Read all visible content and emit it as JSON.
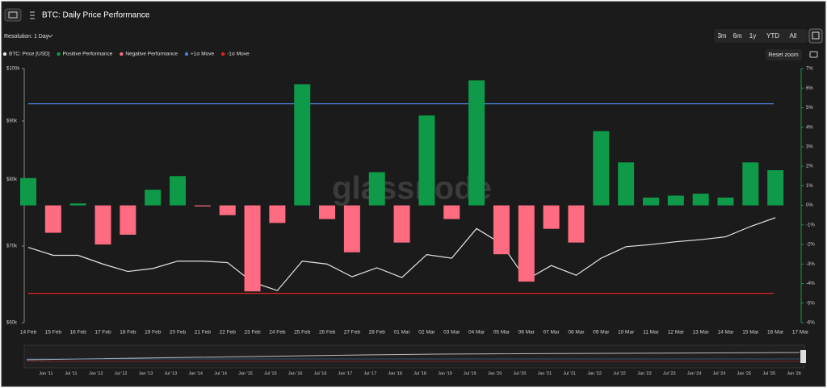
{
  "header": {
    "title": "BTC: Daily Price Performance"
  },
  "toolbar": {
    "resolution": "Resolution: 1 Day",
    "ranges": [
      "3m",
      "6m",
      "1y",
      "YTD",
      "All"
    ],
    "reset": "Reset zoom"
  },
  "chart_data": {
    "type": "bar",
    "watermark": "glassnode",
    "categories": [
      "14 Feb",
      "15 Feb",
      "16 Feb",
      "17 Feb",
      "18 Feb",
      "19 Feb",
      "20 Feb",
      "21 Feb",
      "22 Feb",
      "23 Feb",
      "24 Feb",
      "25 Feb",
      "26 Feb",
      "27 Feb",
      "28 Feb",
      "01 Mar",
      "02 Mar",
      "03 Mar",
      "04 Mar",
      "05 Mar",
      "06 Mar",
      "07 Mar",
      "08 Mar",
      "09 Mar",
      "10 Mar",
      "11 Mar",
      "12 Mar",
      "13 Mar",
      "14 Mar",
      "15 Mar",
      "16 Mar",
      "17 Mar"
    ],
    "series": [
      {
        "name": "BTC: Price [USD]",
        "type": "line",
        "color": "#e6e6e6",
        "values": [
          69800,
          68700,
          68700,
          67500,
          66500,
          66900,
          67900,
          67900,
          67700,
          65100,
          64000,
          67900,
          67500,
          65800,
          67000,
          65700,
          68800,
          68300,
          72500,
          70300,
          65400,
          67300,
          66000,
          68300,
          69900,
          70200,
          70600,
          70900,
          71300,
          72800,
          74100,
          null
        ]
      },
      {
        "name": "Positive Performance",
        "axis": "y2",
        "color": "#0e9a48",
        "values": [
          1.4,
          null,
          0.1,
          null,
          null,
          0.8,
          1.5,
          null,
          null,
          null,
          null,
          6.2,
          null,
          null,
          1.7,
          null,
          4.6,
          null,
          6.4,
          null,
          null,
          null,
          null,
          3.8,
          2.2,
          0.4,
          0.5,
          0.6,
          0.4,
          2.2,
          1.8,
          null
        ]
      },
      {
        "name": "Negative Performance",
        "axis": "y2",
        "color": "#ff6b81",
        "values": [
          null,
          -1.4,
          null,
          -2.0,
          -1.5,
          null,
          null,
          -0.05,
          -0.5,
          -4.4,
          -0.9,
          null,
          -0.7,
          -2.4,
          null,
          -1.9,
          null,
          -0.7,
          null,
          -2.5,
          -3.9,
          -1.2,
          -1.9,
          null,
          null,
          null,
          null,
          null,
          null,
          null,
          null,
          null
        ]
      }
    ],
    "reference_lines": [
      {
        "name": "+1σ Move",
        "axis": "y2",
        "color": "#4a7fd4",
        "value": 5.2
      },
      {
        "name": "-1σ Move",
        "axis": "y2",
        "color": "#e02424",
        "value": -4.5
      }
    ],
    "log_y": true,
    "ylim": [
      60000,
      100000
    ],
    "yticks": [
      {
        "value": 100000,
        "label": "$100k"
      },
      {
        "value": 90000,
        "label": "$90k"
      },
      {
        "value": 80000,
        "label": "$80k"
      },
      {
        "value": 70000,
        "label": "$70k"
      },
      {
        "value": 60000,
        "label": "$60k"
      }
    ],
    "y2lim": [
      -6,
      7
    ],
    "y2ticks": [
      {
        "value": 7,
        "label": "7%"
      },
      {
        "value": 6,
        "label": "6%"
      },
      {
        "value": 5,
        "label": "5%"
      },
      {
        "value": 4,
        "label": "4%"
      },
      {
        "value": 3,
        "label": "3%"
      },
      {
        "value": 2,
        "label": "2%"
      },
      {
        "value": 1,
        "label": "1%"
      },
      {
        "value": 0,
        "label": "0%"
      },
      {
        "value": -1,
        "label": "-1%"
      },
      {
        "value": -2,
        "label": "-2%"
      },
      {
        "value": -3,
        "label": "-3%"
      },
      {
        "value": -4,
        "label": "-4%"
      },
      {
        "value": -5,
        "label": "-5%"
      },
      {
        "value": -6,
        "label": "-6%"
      }
    ],
    "navigator_labels": [
      "Jan '11",
      "Jul '11",
      "Jan '12",
      "Jul '12",
      "Jan '13",
      "Jul '13",
      "Jan '14",
      "Jul '14",
      "Jan '15",
      "Jul '15",
      "Jan '16",
      "Jul '16",
      "Jan '17",
      "Jul '17",
      "Jan '18",
      "Jul '18",
      "Jan '19",
      "Jul '19",
      "Jan '20",
      "Jul '20",
      "Jan '21",
      "Jul '21",
      "Jan '22",
      "Jul '22",
      "Jan '23",
      "Jul '23",
      "Jan '24",
      "Jul '24",
      "Jan '25",
      "Jul '25",
      "Jan '26"
    ]
  }
}
